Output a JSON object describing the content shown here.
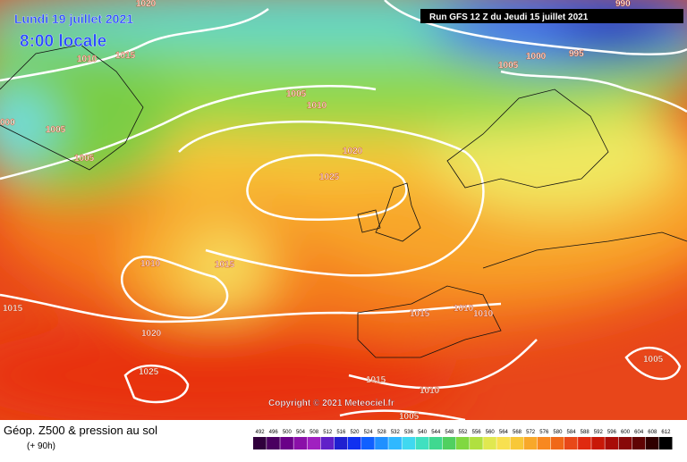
{
  "header": {
    "date": "Lundi 19 juillet 2021",
    "time": "8:00 locale",
    "run": "Run GFS 12 Z du Jeudi 15 juillet 2021"
  },
  "copyright": "Copyright © 2021 Meteociel.fr",
  "isobar_labels": [
    "1020",
    "990",
    "1010",
    "1015",
    "1000",
    "995",
    "1005",
    "1005",
    "1010",
    "000",
    "1005",
    "1005",
    "1020",
    "1025",
    "1010",
    "1015",
    "1015",
    "1020",
    "1025",
    "1015",
    "1010",
    "1010",
    "1015",
    "1010",
    "1005",
    "1005"
  ],
  "legend": {
    "title": "Géop. Z500 & pression au sol",
    "lead": "(+ 90h)",
    "scale": [
      492,
      496,
      500,
      504,
      508,
      512,
      516,
      520,
      524,
      528,
      532,
      536,
      540,
      544,
      548,
      552,
      556,
      560,
      564,
      568,
      572,
      576,
      580,
      584,
      588,
      592,
      596,
      600,
      604,
      608,
      612
    ]
  }
}
